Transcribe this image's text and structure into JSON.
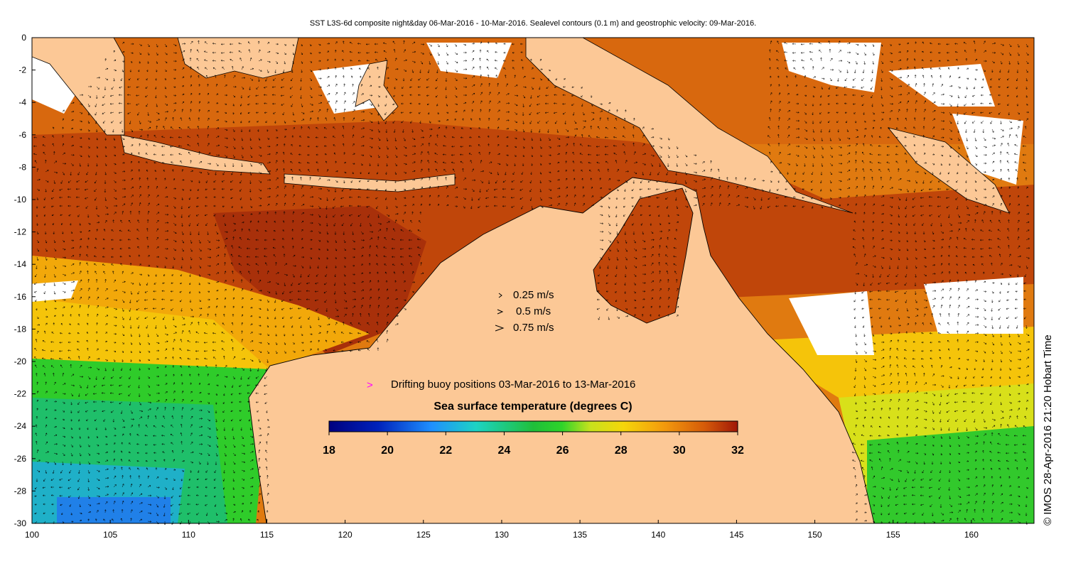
{
  "title": "SST L3S-6d composite night&day 06-Mar-2016 - 10-Mar-2016. Sealevel contours (0.1 m) and geostrophic velocity: 09-Mar-2016.",
  "credit": "© IMOS 28-Apr-2016 21:20 Hobart Time",
  "axes": {
    "x_ticks": [
      "100",
      "105",
      "110",
      "115",
      "120",
      "125",
      "130",
      "135",
      "140",
      "145",
      "150",
      "155",
      "160"
    ],
    "y_ticks": [
      "0",
      "-2",
      "-4",
      "-6",
      "-8",
      "-10",
      "-12",
      "-14",
      "-16",
      "-18",
      "-20",
      "-22",
      "-24",
      "-26",
      "-28",
      "-30"
    ],
    "xlim": [
      100,
      164
    ],
    "ylim": [
      -30,
      0
    ]
  },
  "velocity_legend": [
    {
      "label": "0.25 m/s",
      "speed": 0.25
    },
    {
      "label": "0.5 m/s",
      "speed": 0.5
    },
    {
      "label": "0.75 m/s",
      "speed": 0.75
    }
  ],
  "buoy_legend": {
    "symbol": ">",
    "label": "Drifting buoy positions 03-Mar-2016 to 13-Mar-2016",
    "color": "#ff00ff"
  },
  "colorbar": {
    "title": "Sea surface temperature (degrees C)",
    "ticks": [
      "18",
      "20",
      "22",
      "24",
      "26",
      "28",
      "30",
      "32"
    ],
    "range": [
      18,
      32
    ]
  },
  "colors": {
    "land": "#fcc896",
    "coast": "#000000",
    "cloud_mask": "#ffffff"
  }
}
